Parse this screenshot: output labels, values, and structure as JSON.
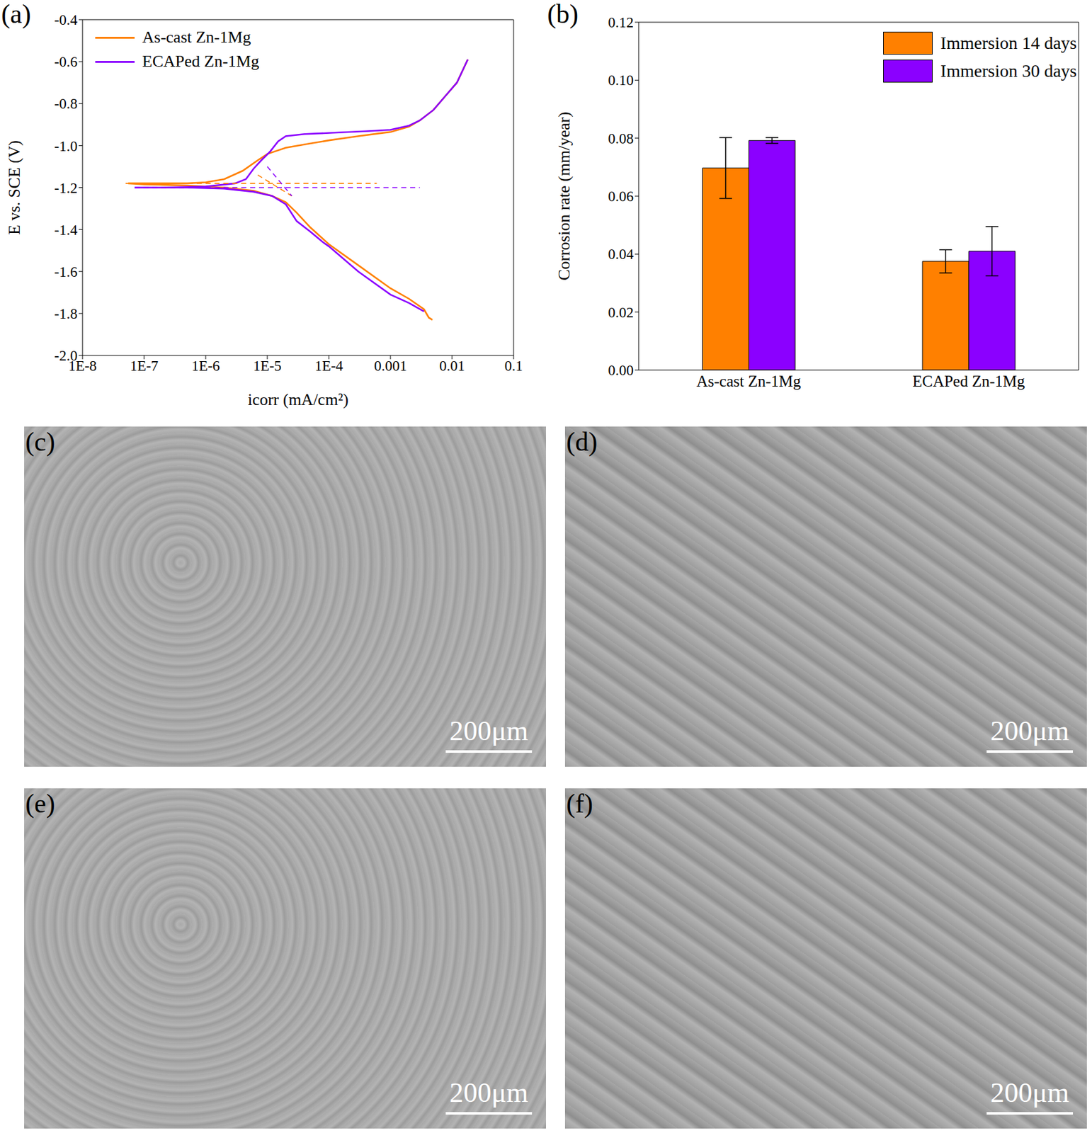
{
  "chart_data": [
    {
      "type": "line",
      "title": "(a)",
      "x_label": "icorr (mA/cm²)",
      "y_label": "E vs. SCE (V)",
      "log": "x",
      "grid": false,
      "legend": "top-left",
      "xlim": [
        1e-08,
        0.1
      ],
      "xticks": [
        {
          "value": 1e-08,
          "label": "1E-8"
        },
        {
          "value": 1e-07,
          "label": "1E-7"
        },
        {
          "value": 1e-06,
          "label": "1E-6"
        },
        {
          "value": 1e-05,
          "label": "1E-5"
        },
        {
          "value": 0.0001,
          "label": "1E-4"
        },
        0.001,
        0.01,
        0.1
      ],
      "ylim": [
        -2.0,
        -0.4
      ],
      "yticks": [
        {
          "value": -2.0,
          "label": "-2.0"
        },
        -1.8,
        -1.6,
        -1.4,
        -1.2,
        {
          "value": -1.0,
          "label": "-1.0"
        },
        -0.8,
        -0.6,
        -0.4
      ],
      "series": [
        {
          "name": "As-cast Zn-1Mg",
          "color": "#ff8000",
          "line_style": "solid",
          "x": [
            0.0048,
            0.0042,
            0.0035,
            0.002,
            0.001,
            0.0003,
            0.0001,
            5e-05,
            3e-05,
            2e-05,
            1.2e-05,
            6e-06,
            2e-06,
            5e-07,
            1e-07,
            5.5e-08,
            1e-07,
            5e-07,
            1e-06,
            2e-06,
            4e-06,
            7e-06,
            1e-05,
            2e-05,
            5e-05,
            0.0001,
            0.0003,
            0.001,
            0.002,
            0.003,
            0.005,
            0.008,
            0.012,
            0.018
          ],
          "values": [
            -1.83,
            -1.82,
            -1.78,
            -1.73,
            -1.68,
            -1.57,
            -1.47,
            -1.39,
            -1.32,
            -1.27,
            -1.24,
            -1.215,
            -1.2,
            -1.19,
            -1.185,
            -1.18,
            -1.18,
            -1.18,
            -1.175,
            -1.16,
            -1.12,
            -1.07,
            -1.04,
            -1.01,
            -0.99,
            -0.975,
            -0.955,
            -0.935,
            -0.91,
            -0.88,
            -0.83,
            -0.76,
            -0.7,
            -0.59
          ]
        },
        {
          "name": "ECAPed Zn-1Mg",
          "color": "#8b00ff",
          "line_style": "solid",
          "x": [
            0.0035,
            0.002,
            0.001,
            0.0003,
            0.0001,
            8e-05,
            5e-05,
            3e-05,
            2e-05,
            1.2e-05,
            6e-06,
            2e-06,
            5e-07,
            7e-08,
            2e-07,
            1e-06,
            3e-06,
            4.5e-06,
            6e-06,
            8e-06,
            1.1e-05,
            1.5e-05,
            2e-05,
            4e-05,
            0.0001,
            0.0005,
            0.001,
            0.002,
            0.003,
            0.005,
            0.008,
            0.012,
            0.018
          ],
          "values": [
            -1.79,
            -1.75,
            -1.71,
            -1.6,
            -1.48,
            -1.46,
            -1.41,
            -1.36,
            -1.28,
            -1.24,
            -1.22,
            -1.205,
            -1.2,
            -1.2,
            -1.2,
            -1.195,
            -1.18,
            -1.16,
            -1.11,
            -1.07,
            -1.03,
            -0.98,
            -0.955,
            -0.945,
            -0.94,
            -0.93,
            -0.925,
            -0.905,
            -0.88,
            -0.83,
            -0.76,
            -0.7,
            -0.59
          ]
        },
        {
          "color": "#ff8000",
          "line_style": "dashed",
          "x": [
            5e-08,
            0.0006
          ],
          "values": [
            -1.18,
            -1.18
          ]
        },
        {
          "color": "#8b00ff",
          "line_style": "dashed",
          "x": [
            7e-08,
            0.003
          ],
          "values": [
            -1.2,
            -1.2
          ]
        },
        {
          "color": "#ff8000",
          "line_style": "dashed",
          "x": [
            7e-06,
            2.5e-05
          ],
          "values": [
            -1.14,
            -1.24
          ]
        },
        {
          "color": "#8b00ff",
          "line_style": "dashed",
          "x": [
            1e-05,
            2.5e-05
          ],
          "values": [
            -1.1,
            -1.24
          ]
        }
      ]
    },
    {
      "type": "bar",
      "title": "(b)",
      "y_label": "Corrosion rate (mm/year)",
      "grid": false,
      "legend": "top-right",
      "categories": [
        "As-cast Zn-1Mg",
        "ECAPed Zn-1Mg"
      ],
      "ylim": [
        0,
        0.12
      ],
      "yticks": [
        {
          "value": 0,
          "label": "0.00"
        },
        0.02,
        0.04,
        0.06,
        0.08,
        {
          "value": 0.1,
          "label": "0.10"
        },
        0.12
      ],
      "series": [
        {
          "name": "Immersion 14 days",
          "color": "#ff8000",
          "values": [
            0.0697,
            0.0375
          ],
          "errors": [
            0.0105,
            0.004
          ]
        },
        {
          "name": "Immersion 30 days",
          "color": "#8b00ff",
          "values": [
            0.0792,
            0.041
          ],
          "errors": [
            0.001,
            0.0085
          ]
        }
      ]
    }
  ],
  "images": [
    {
      "label": "(c)",
      "scale_bar": "200μm"
    },
    {
      "label": "(d)",
      "scale_bar": "200μm"
    },
    {
      "label": "(e)",
      "scale_bar": "200μm"
    },
    {
      "label": "(f)",
      "scale_bar": "200μm"
    }
  ]
}
